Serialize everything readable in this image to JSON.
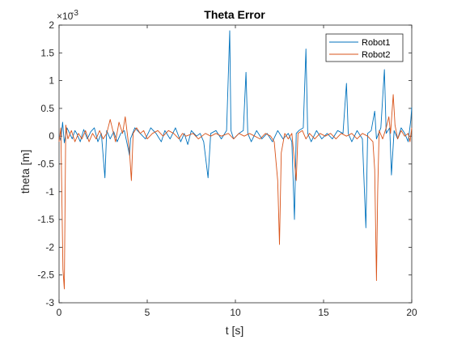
{
  "chart_data": {
    "type": "line",
    "title": "Theta Error",
    "xlabel": "t [s]",
    "ylabel": "theta [m]",
    "y_exponent_label": "×10",
    "y_exponent_power": "-3",
    "xlim": [
      0,
      20
    ],
    "ylim": [
      -3,
      2
    ],
    "x_ticks": [
      0,
      5,
      10,
      15,
      20
    ],
    "x_tick_labels": [
      "0",
      "5",
      "10",
      "15",
      "20"
    ],
    "y_ticks": [
      2,
      1.5,
      1,
      0.5,
      0,
      -0.5,
      -1,
      -1.5,
      -2,
      -2.5,
      -3
    ],
    "y_tick_labels": [
      "2",
      "1.5",
      "1",
      "0.5",
      "0",
      "-0.5",
      "-1",
      "-1.5",
      "-2",
      "-2.5",
      "-3"
    ],
    "grid": false,
    "legend": {
      "position": "top-right"
    },
    "series": [
      {
        "name": "Robot1",
        "color": "#0072bd",
        "points": [
          [
            0.0,
            0.02
          ],
          [
            0.1,
            -0.08
          ],
          [
            0.2,
            0.25
          ],
          [
            0.3,
            -0.12
          ],
          [
            0.45,
            0.15
          ],
          [
            0.6,
            0.05
          ],
          [
            0.75,
            -0.05
          ],
          [
            0.9,
            0.1
          ],
          [
            1.0,
            0.05
          ],
          [
            1.2,
            -0.1
          ],
          [
            1.4,
            0.12
          ],
          [
            1.6,
            -0.05
          ],
          [
            1.8,
            0.08
          ],
          [
            2.0,
            0.15
          ],
          [
            2.2,
            -0.1
          ],
          [
            2.4,
            0.05
          ],
          [
            2.6,
            -0.75
          ],
          [
            2.7,
            0.1
          ],
          [
            2.9,
            -0.05
          ],
          [
            3.1,
            0.08
          ],
          [
            3.3,
            -0.1
          ],
          [
            3.5,
            0.05
          ],
          [
            3.7,
            0.1
          ],
          [
            4.0,
            -0.35
          ],
          [
            4.05,
            -0.05
          ],
          [
            4.3,
            0.15
          ],
          [
            4.6,
            0.05
          ],
          [
            4.9,
            -0.05
          ],
          [
            5.2,
            0.15
          ],
          [
            5.5,
            0.05
          ],
          [
            5.8,
            -0.1
          ],
          [
            6.0,
            0.1
          ],
          [
            6.3,
            -0.05
          ],
          [
            6.6,
            0.15
          ],
          [
            6.9,
            -0.1
          ],
          [
            7.1,
            0.05
          ],
          [
            7.3,
            -0.15
          ],
          [
            7.5,
            0.1
          ],
          [
            7.8,
            0.0
          ],
          [
            8.0,
            0.05
          ],
          [
            8.2,
            -0.1
          ],
          [
            8.45,
            -0.75
          ],
          [
            8.6,
            0.05
          ],
          [
            8.9,
            0.1
          ],
          [
            9.2,
            -0.05
          ],
          [
            9.5,
            0.1
          ],
          [
            9.68,
            1.9
          ],
          [
            9.75,
            0.1
          ],
          [
            9.9,
            -0.05
          ],
          [
            10.2,
            0.05
          ],
          [
            10.45,
            0.1
          ],
          [
            10.6,
            1.15
          ],
          [
            10.7,
            0.05
          ],
          [
            10.9,
            -0.1
          ],
          [
            11.2,
            0.1
          ],
          [
            11.5,
            -0.05
          ],
          [
            11.8,
            0.05
          ],
          [
            12.1,
            -0.1
          ],
          [
            12.4,
            0.1
          ],
          [
            12.7,
            -0.05
          ],
          [
            13.0,
            0.05
          ],
          [
            13.2,
            -0.1
          ],
          [
            13.35,
            -1.5
          ],
          [
            13.45,
            0.05
          ],
          [
            13.6,
            0.1
          ],
          [
            13.85,
            0.15
          ],
          [
            14.0,
            1.57
          ],
          [
            14.1,
            0.05
          ],
          [
            14.3,
            -0.1
          ],
          [
            14.6,
            0.1
          ],
          [
            14.9,
            -0.05
          ],
          [
            15.2,
            0.05
          ],
          [
            15.5,
            -0.05
          ],
          [
            15.8,
            0.1
          ],
          [
            16.1,
            0.05
          ],
          [
            16.3,
            0.95
          ],
          [
            16.4,
            0.05
          ],
          [
            16.6,
            -0.1
          ],
          [
            16.9,
            0.1
          ],
          [
            17.2,
            -0.05
          ],
          [
            17.4,
            -1.65
          ],
          [
            17.5,
            0.05
          ],
          [
            17.7,
            0.1
          ],
          [
            17.9,
            0.45
          ],
          [
            18.0,
            -0.05
          ],
          [
            18.25,
            0.15
          ],
          [
            18.45,
            1.2
          ],
          [
            18.55,
            0.05
          ],
          [
            18.75,
            0.15
          ],
          [
            18.85,
            -0.7
          ],
          [
            19.0,
            0.1
          ],
          [
            19.2,
            -0.05
          ],
          [
            19.4,
            0.15
          ],
          [
            19.6,
            0.05
          ],
          [
            19.8,
            -0.1
          ],
          [
            19.95,
            0.3
          ],
          [
            20.0,
            0.52
          ]
        ]
      },
      {
        "name": "Robot2",
        "color": "#d95319",
        "points": [
          [
            0.0,
            -0.1
          ],
          [
            0.1,
            0.15
          ],
          [
            0.22,
            -2.4
          ],
          [
            0.3,
            -2.75
          ],
          [
            0.38,
            0.2
          ],
          [
            0.5,
            -0.05
          ],
          [
            0.7,
            0.1
          ],
          [
            0.9,
            -0.1
          ],
          [
            1.1,
            0.05
          ],
          [
            1.3,
            -0.05
          ],
          [
            1.5,
            0.1
          ],
          [
            1.7,
            -0.1
          ],
          [
            1.9,
            0.05
          ],
          [
            2.1,
            -0.05
          ],
          [
            2.3,
            0.1
          ],
          [
            2.5,
            -0.05
          ],
          [
            2.7,
            0.05
          ],
          [
            2.9,
            0.3
          ],
          [
            3.05,
            0.1
          ],
          [
            3.2,
            -0.1
          ],
          [
            3.4,
            0.25
          ],
          [
            3.6,
            0.05
          ],
          [
            3.75,
            0.35
          ],
          [
            3.85,
            0.1
          ],
          [
            4.0,
            -0.3
          ],
          [
            4.1,
            -0.8
          ],
          [
            4.2,
            0.05
          ],
          [
            4.4,
            0.15
          ],
          [
            4.6,
            0.05
          ],
          [
            4.8,
            0.1
          ],
          [
            5.0,
            -0.05
          ],
          [
            5.3,
            0.05
          ],
          [
            5.6,
            0.1
          ],
          [
            5.9,
            0.0
          ],
          [
            6.2,
            0.1
          ],
          [
            6.5,
            0.05
          ],
          [
            6.8,
            -0.05
          ],
          [
            7.0,
            0.05
          ],
          [
            7.2,
            0.0
          ],
          [
            7.6,
            0.05
          ],
          [
            7.9,
            -0.05
          ],
          [
            8.3,
            0.05
          ],
          [
            8.6,
            0.0
          ],
          [
            8.9,
            0.05
          ],
          [
            9.2,
            0.0
          ],
          [
            9.6,
            0.05
          ],
          [
            9.9,
            -0.05
          ],
          [
            10.2,
            0.05
          ],
          [
            10.5,
            0.0
          ],
          [
            10.8,
            0.05
          ],
          [
            11.1,
            0.0
          ],
          [
            11.4,
            -0.05
          ],
          [
            11.7,
            0.05
          ],
          [
            12.0,
            0.0
          ],
          [
            12.2,
            -0.1
          ],
          [
            12.4,
            -0.8
          ],
          [
            12.5,
            -1.95
          ],
          [
            12.6,
            -0.3
          ],
          [
            12.8,
            0.05
          ],
          [
            13.0,
            -0.05
          ],
          [
            13.2,
            0.05
          ],
          [
            13.45,
            -0.8
          ],
          [
            13.55,
            0.05
          ],
          [
            13.8,
            0.1
          ],
          [
            14.0,
            -0.05
          ],
          [
            14.2,
            0.05
          ],
          [
            14.5,
            -0.05
          ],
          [
            14.8,
            0.05
          ],
          [
            15.1,
            0.0
          ],
          [
            15.4,
            0.05
          ],
          [
            15.7,
            -0.05
          ],
          [
            16.0,
            0.05
          ],
          [
            16.3,
            0.0
          ],
          [
            16.6,
            0.05
          ],
          [
            16.9,
            -0.05
          ],
          [
            17.2,
            0.05
          ],
          [
            17.5,
            0.0
          ],
          [
            17.8,
            -0.1
          ],
          [
            17.9,
            -0.6
          ],
          [
            18.0,
            -2.6
          ],
          [
            18.07,
            -1.0
          ],
          [
            18.15,
            0.1
          ],
          [
            18.35,
            -0.05
          ],
          [
            18.55,
            0.15
          ],
          [
            18.7,
            0.35
          ],
          [
            18.8,
            0.05
          ],
          [
            18.95,
            0.75
          ],
          [
            19.05,
            0.2
          ],
          [
            19.2,
            -0.05
          ],
          [
            19.4,
            0.1
          ],
          [
            19.6,
            0.0
          ],
          [
            19.8,
            0.05
          ],
          [
            19.9,
            -0.1
          ],
          [
            20.0,
            0.15
          ]
        ]
      }
    ]
  }
}
